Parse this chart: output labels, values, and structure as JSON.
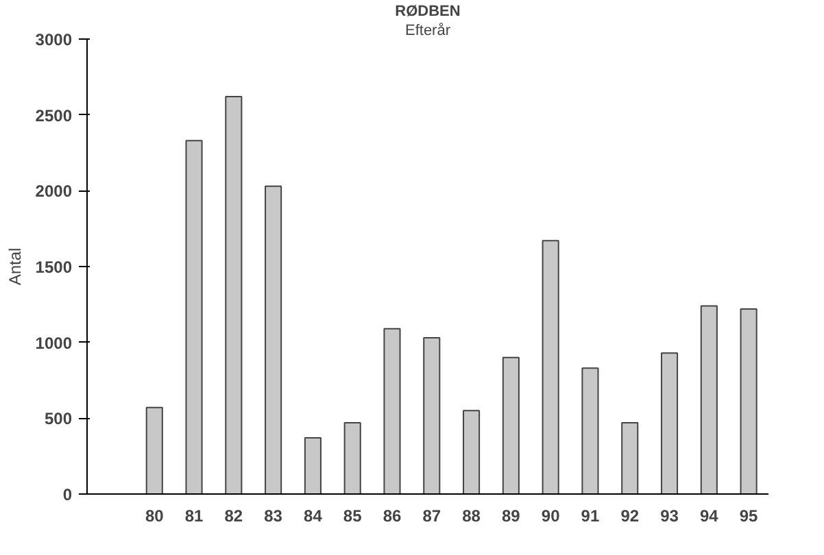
{
  "chart_data": {
    "type": "bar",
    "title": "RØDBEN",
    "subtitle": "Efterår",
    "ylabel": "Antal",
    "categories": [
      "80",
      "81",
      "82",
      "83",
      "84",
      "85",
      "86",
      "87",
      "88",
      "89",
      "90",
      "91",
      "92",
      "93",
      "94",
      "95"
    ],
    "values": [
      570,
      2330,
      2620,
      2030,
      370,
      470,
      1090,
      1030,
      550,
      900,
      1670,
      830,
      470,
      930,
      1240,
      1220
    ],
    "color": "#c8c8c8",
    "ylim": [
      0,
      3000
    ],
    "yticks": [
      0,
      500,
      1000,
      1500,
      2000,
      2500,
      3000
    ],
    "grid": false
  }
}
